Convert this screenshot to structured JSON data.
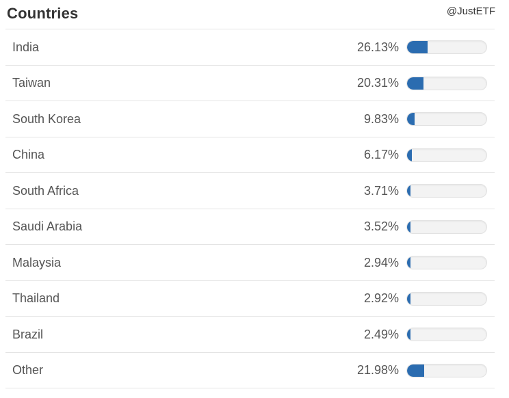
{
  "header": {
    "title": "Countries",
    "watermark": "@JustETF"
  },
  "colors": {
    "title_text": "#333333",
    "row_text": "#555555",
    "separator": "#e4e4e4",
    "bar_fill": "#2b6cb0",
    "bar_track_bg": "#f3f3f3",
    "bar_track_border": "#e2e2e2"
  },
  "chart_data": {
    "type": "bar",
    "title": "Countries",
    "orientation": "horizontal",
    "unit": "%",
    "xlim": [
      0,
      100
    ],
    "grid": false,
    "legend": false,
    "categories": [
      "India",
      "Taiwan",
      "South Korea",
      "China",
      "South Africa",
      "Saudi Arabia",
      "Malaysia",
      "Thailand",
      "Brazil",
      "Other"
    ],
    "values": [
      26.13,
      20.31,
      9.83,
      6.17,
      3.71,
      3.52,
      2.94,
      2.92,
      2.49,
      21.98
    ]
  },
  "rows": [
    {
      "label": "India",
      "percent_label": "26.13%",
      "value": 26.13
    },
    {
      "label": "Taiwan",
      "percent_label": "20.31%",
      "value": 20.31
    },
    {
      "label": "South Korea",
      "percent_label": "9.83%",
      "value": 9.83
    },
    {
      "label": "China",
      "percent_label": "6.17%",
      "value": 6.17
    },
    {
      "label": "South Africa",
      "percent_label": "3.71%",
      "value": 3.71
    },
    {
      "label": "Saudi Arabia",
      "percent_label": "3.52%",
      "value": 3.52
    },
    {
      "label": "Malaysia",
      "percent_label": "2.94%",
      "value": 2.94
    },
    {
      "label": "Thailand",
      "percent_label": "2.92%",
      "value": 2.92
    },
    {
      "label": "Brazil",
      "percent_label": "2.49%",
      "value": 2.49
    },
    {
      "label": "Other",
      "percent_label": "21.98%",
      "value": 21.98
    }
  ]
}
